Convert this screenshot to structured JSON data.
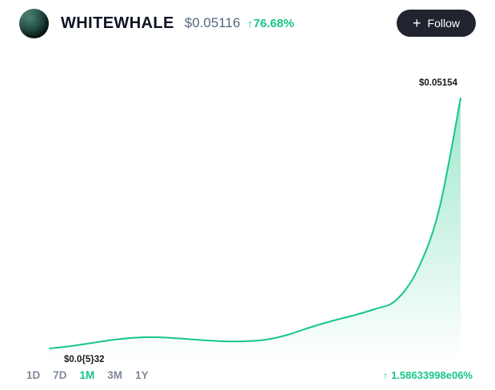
{
  "header": {
    "token_name": "WHITEWHALE",
    "price": "$0.05116",
    "change_arrow": "↑",
    "change_value": "76.68%",
    "follow": {
      "plus": "+",
      "label": "Follow"
    }
  },
  "chart": {
    "high_label": "$0.05154",
    "low_label": "$0.0{5}32"
  },
  "footer": {
    "tabs": [
      "1D",
      "7D",
      "1M",
      "3M",
      "1Y"
    ],
    "active_tab": "1M",
    "total_change_arrow": "↑",
    "total_change_value": "1.58633998e06%"
  },
  "colors": {
    "accent_green": "#16c784",
    "text_dark": "#0d1421",
    "text_gray": "#808a9d",
    "price_gray": "#58667e",
    "button_bg": "#21242f"
  },
  "chart_data": {
    "type": "line",
    "title": "WHITEWHALE price",
    "x_range": "1M",
    "xlabel": "",
    "ylabel": "",
    "grid": false,
    "legend": false,
    "ylim": [
      0,
      0.0535
    ],
    "values": [
      3.2e-06,
      0.0005,
      0.00116,
      0.00181,
      0.00223,
      0.00231,
      0.00206,
      0.00173,
      0.00148,
      0.00148,
      0.00181,
      0.0028,
      0.00428,
      0.0056,
      0.00675,
      0.00807,
      0.00988,
      0.01614,
      0.02849,
      0.05154
    ],
    "high_annotation": "$0.05154",
    "low_annotation": "$0.0{5}32",
    "line_color": "#16c784",
    "area_fill": "vertical green gradient fading to transparent"
  }
}
